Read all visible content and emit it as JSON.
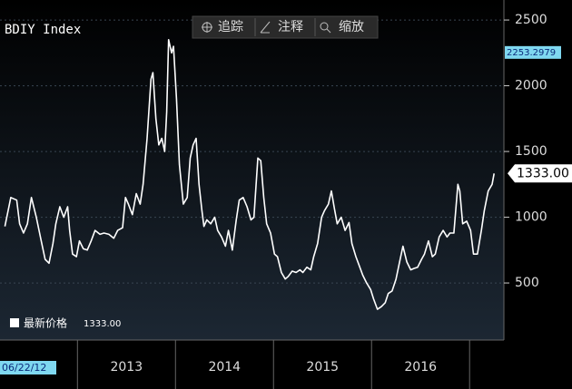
{
  "chart_data": {
    "type": "line",
    "title": "BDIY Index",
    "toolbar": [
      "追踪",
      "注释",
      "缩放"
    ],
    "start_date": "06/22/12",
    "reference_value": 2253.2979,
    "last_value": 1333,
    "last_value_label": "1333.00",
    "xlim": [
      2012.21,
      2017.35
    ],
    "ylim": [
      66,
      2597
    ],
    "xticks": [
      {
        "value": 2013.5,
        "label": "2013"
      },
      {
        "value": 2014.5,
        "label": "2014"
      },
      {
        "value": 2015.5,
        "label": "2015"
      },
      {
        "value": 2016.5,
        "label": "2016"
      }
    ],
    "x_separators": [
      2013,
      2014,
      2015,
      2016,
      2017
    ],
    "yticks": [
      500,
      1000,
      1500,
      2000,
      2500
    ],
    "grid": true,
    "series": [
      {
        "name": "最新价格",
        "color": "#ffffff",
        "x": [
          2012.26,
          2012.32,
          2012.38,
          2012.41,
          2012.45,
          2012.49,
          2012.53,
          2012.58,
          2012.63,
          2012.67,
          2012.71,
          2012.75,
          2012.78,
          2012.82,
          2012.86,
          2012.9,
          2012.92,
          2012.95,
          2012.99,
          2013.02,
          2013.06,
          2013.1,
          2013.14,
          2013.18,
          2013.23,
          2013.27,
          2013.32,
          2013.37,
          2013.41,
          2013.46,
          2013.49,
          2013.52,
          2013.56,
          2013.6,
          2013.64,
          2013.67,
          2013.71,
          2013.75,
          2013.77,
          2013.8,
          2013.83,
          2013.86,
          2013.89,
          2013.91,
          2013.93,
          2013.96,
          2013.98,
          2014.01,
          2014.04,
          2014.08,
          2014.12,
          2014.15,
          2014.18,
          2014.21,
          2014.24,
          2014.27,
          2014.29,
          2014.32,
          2014.36,
          2014.4,
          2014.43,
          2014.47,
          2014.51,
          2014.54,
          2014.58,
          2014.62,
          2014.65,
          2014.69,
          2014.73,
          2014.77,
          2014.8,
          2014.84,
          2014.87,
          2014.9,
          2014.93,
          2014.97,
          2015.01,
          2015.04,
          2015.08,
          2015.12,
          2015.15,
          2015.19,
          2015.23,
          2015.27,
          2015.3,
          2015.34,
          2015.38,
          2015.41,
          2015.45,
          2015.49,
          2015.52,
          2015.56,
          2015.59,
          2015.62,
          2015.65,
          2015.69,
          2015.73,
          2015.77,
          2015.8,
          2015.84,
          2015.88,
          2015.91,
          2015.95,
          2015.99,
          2016.02,
          2016.06,
          2016.1,
          2016.14,
          2016.17,
          2016.21,
          2016.25,
          2016.28,
          2016.32,
          2016.36,
          2016.4,
          2016.43,
          2016.47,
          2016.51,
          2016.54,
          2016.58,
          2016.62,
          2016.65,
          2016.69,
          2016.73,
          2016.77,
          2016.8,
          2016.84,
          2016.88,
          2016.9,
          2016.93,
          2016.97,
          2017.01,
          2017.04,
          2017.08,
          2017.12,
          2017.15,
          2017.19,
          2017.23,
          2017.25
        ],
        "values": [
          930,
          1150,
          1130,
          950,
          880,
          950,
          1150,
          1000,
          820,
          680,
          650,
          800,
          950,
          1080,
          1000,
          1080,
          900,
          720,
          700,
          820,
          760,
          750,
          820,
          900,
          870,
          880,
          870,
          840,
          900,
          920,
          1150,
          1100,
          1020,
          1180,
          1100,
          1250,
          1600,
          2050,
          2100,
          1750,
          1550,
          1600,
          1500,
          1800,
          2350,
          2250,
          2300,
          1900,
          1400,
          1100,
          1150,
          1450,
          1550,
          1600,
          1250,
          1050,
          930,
          980,
          950,
          1000,
          900,
          850,
          780,
          900,
          750,
          980,
          1130,
          1150,
          1080,
          980,
          1000,
          1450,
          1430,
          1150,
          950,
          880,
          720,
          700,
          580,
          530,
          550,
          590,
          580,
          600,
          580,
          620,
          600,
          700,
          800,
          1000,
          1050,
          1100,
          1200,
          1070,
          950,
          1000,
          900,
          960,
          800,
          700,
          620,
          560,
          500,
          450,
          380,
          300,
          320,
          350,
          420,
          440,
          530,
          640,
          780,
          660,
          600,
          610,
          620,
          680,
          720,
          820,
          700,
          720,
          850,
          900,
          850,
          880,
          880,
          1250,
          1200,
          950,
          970,
          900,
          720,
          720,
          900,
          1050,
          1200,
          1250,
          1333
        ]
      }
    ]
  }
}
